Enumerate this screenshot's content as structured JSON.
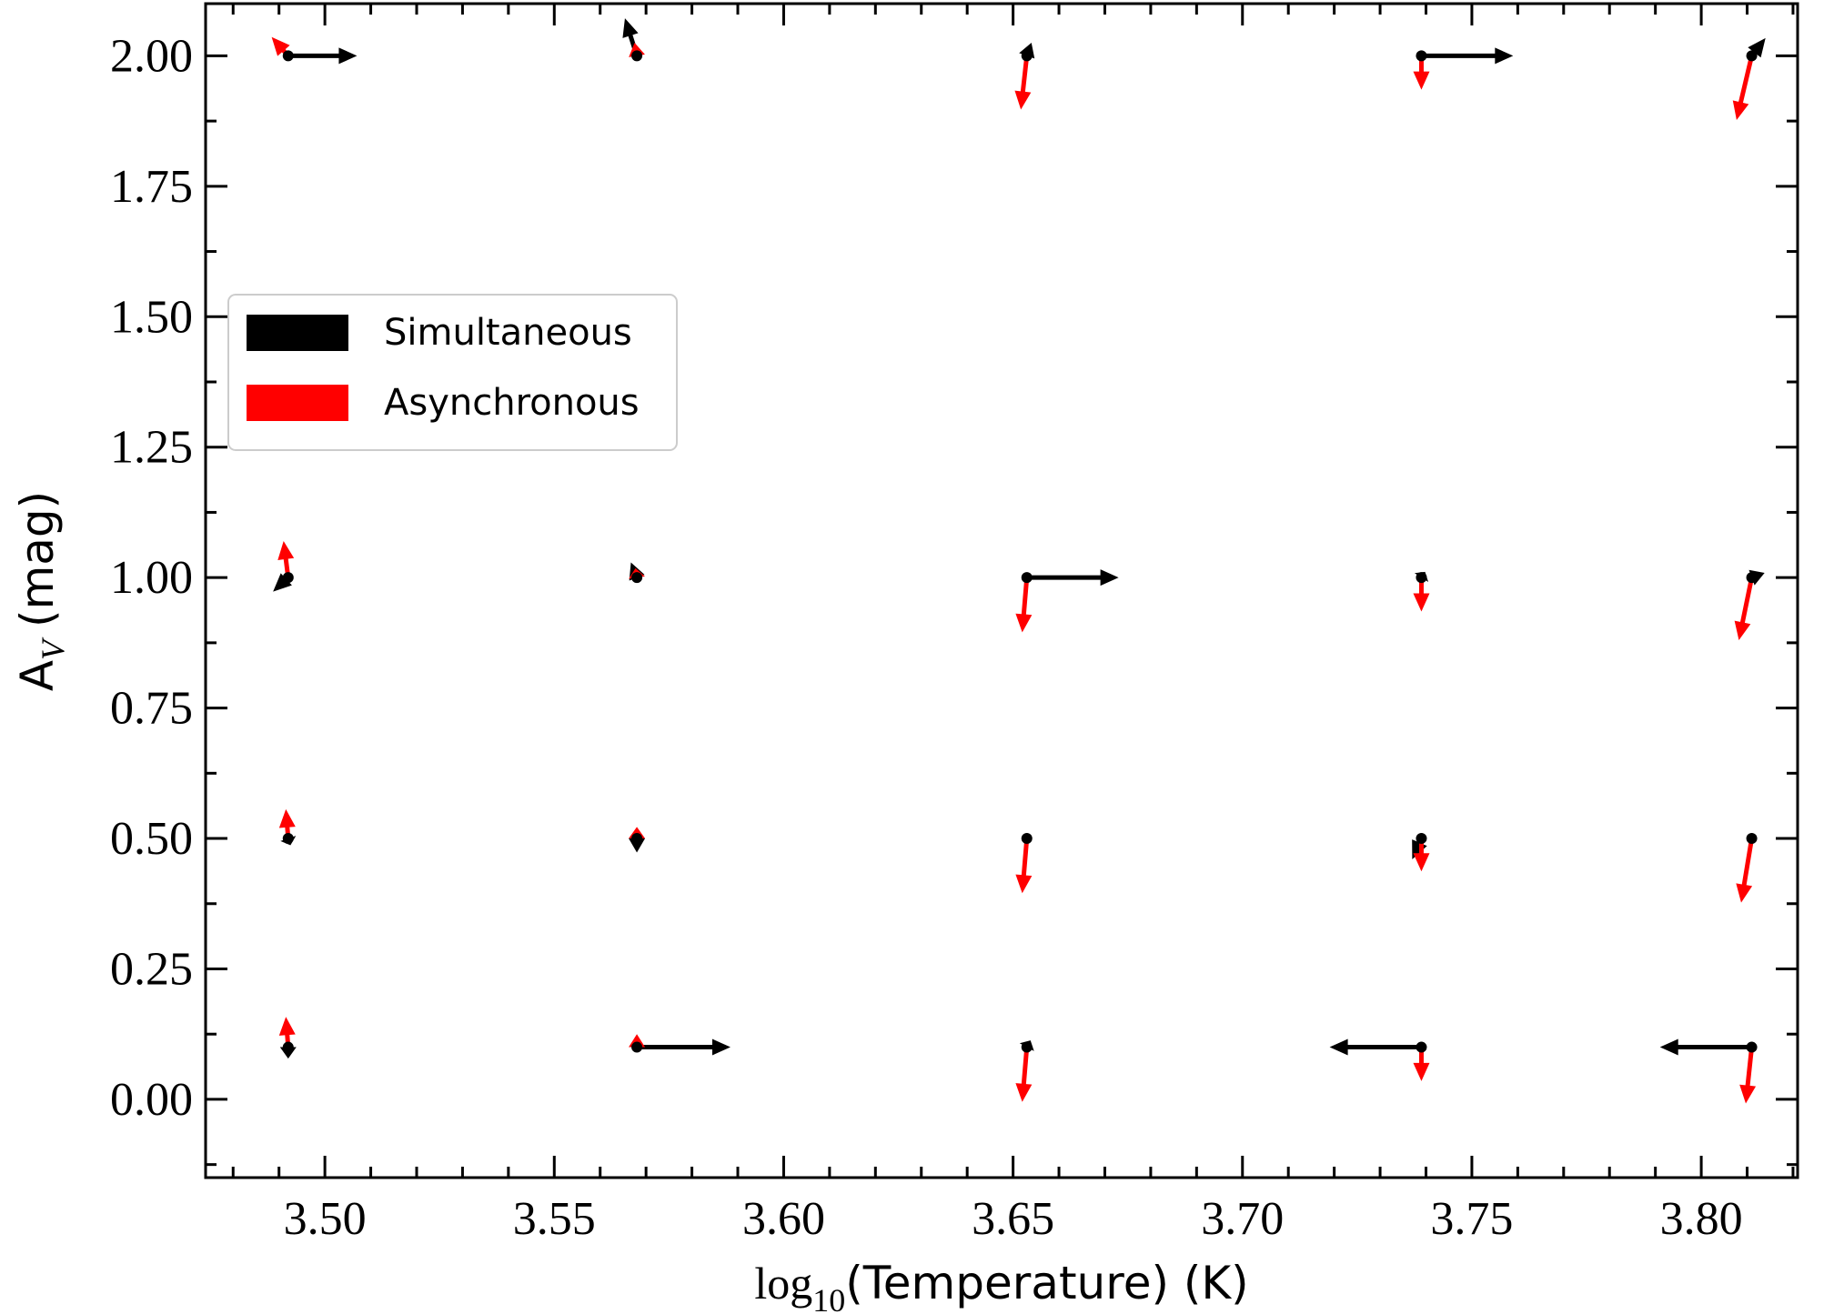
{
  "chart_data": {
    "type": "quiver",
    "xlabel": [
      "log",
      "10",
      "(Temperature) (K)"
    ],
    "ylabel": [
      "A",
      "V",
      "(mag)"
    ],
    "x": [
      3.492,
      3.568,
      3.653,
      3.739,
      3.811,
      3.492,
      3.568,
      3.653,
      3.739,
      3.811,
      3.492,
      3.568,
      3.653,
      3.739,
      3.811,
      3.492,
      3.568,
      3.653,
      3.739,
      3.811
    ],
    "y": [
      2.0,
      2.0,
      2.0,
      2.0,
      2.0,
      1.0,
      1.0,
      1.0,
      1.0,
      1.0,
      0.5,
      0.5,
      0.5,
      0.5,
      0.5,
      0.1,
      0.1,
      0.1,
      0.1,
      0.1
    ],
    "series": [
      {
        "name": "Simultaneous",
        "color": "#000000",
        "u": [
          0.015,
          -0.0026,
          0.001,
          0.02,
          0.003,
          -0.0033,
          -0.0013,
          0.02,
          0.0008,
          0.0028,
          0.0005,
          0,
          0,
          -0.002,
          0,
          0,
          0.0204,
          0.0008,
          -0.02,
          -0.02
        ],
        "v": [
          0,
          0.072,
          0.025,
          0,
          0.034,
          -0.027,
          0.029,
          0,
          0.011,
          0.009,
          -0.013,
          -0.027,
          0,
          -0.04,
          0,
          -0.022,
          0,
          0.013,
          0,
          0
        ]
      },
      {
        "name": "Asynchronous",
        "color": "#ff0000",
        "u": [
          -0.0036,
          -0.0005,
          -0.0013,
          0,
          -0.0033,
          -0.001,
          -0.0003,
          -0.001,
          0,
          -0.0028,
          -0.0005,
          0,
          -0.001,
          0,
          -0.0023,
          -0.0005,
          0,
          -0.001,
          0,
          -0.0013
        ],
        "v": [
          0.036,
          0.025,
          -0.103,
          -0.065,
          -0.123,
          0.07,
          0.018,
          -0.105,
          -0.065,
          -0.12,
          0.056,
          0.022,
          -0.105,
          -0.063,
          -0.123,
          0.058,
          0.025,
          -0.105,
          -0.065,
          -0.108
        ]
      }
    ],
    "xlim": [
      3.474,
      3.821
    ],
    "ylim": [
      -0.15,
      2.1
    ],
    "xticks": [
      {
        "value": 3.5,
        "label": "3.50"
      },
      {
        "value": 3.55,
        "label": "3.55"
      },
      {
        "value": 3.6,
        "label": "3.60"
      },
      {
        "value": 3.65,
        "label": "3.65"
      },
      {
        "value": 3.7,
        "label": "3.70"
      },
      {
        "value": 3.75,
        "label": "3.75"
      },
      {
        "value": 3.8,
        "label": "3.80"
      }
    ],
    "yticks": [
      {
        "value": 0,
        "label": "0.00"
      },
      {
        "value": 0.25,
        "label": "0.25"
      },
      {
        "value": 0.5,
        "label": "0.50"
      },
      {
        "value": 0.75,
        "label": "0.75"
      },
      {
        "value": 1,
        "label": "1.00"
      },
      {
        "value": 1.25,
        "label": "1.25"
      },
      {
        "value": 1.5,
        "label": "1.50"
      },
      {
        "value": 1.75,
        "label": "1.75"
      },
      {
        "value": 2,
        "label": "2.00"
      }
    ],
    "xminor": [
      3.48,
      3.49,
      3.51,
      3.52,
      3.53,
      3.54,
      3.56,
      3.57,
      3.58,
      3.59,
      3.61,
      3.62,
      3.63,
      3.64,
      3.66,
      3.67,
      3.68,
      3.69,
      3.71,
      3.72,
      3.73,
      3.74,
      3.76,
      3.77,
      3.78,
      3.79,
      3.81,
      3.82
    ],
    "yminor": [
      -0.125,
      0.125,
      0.375,
      0.625,
      0.875,
      1.125,
      1.375,
      1.625,
      1.875
    ],
    "legend": "center left",
    "grid": false
  }
}
